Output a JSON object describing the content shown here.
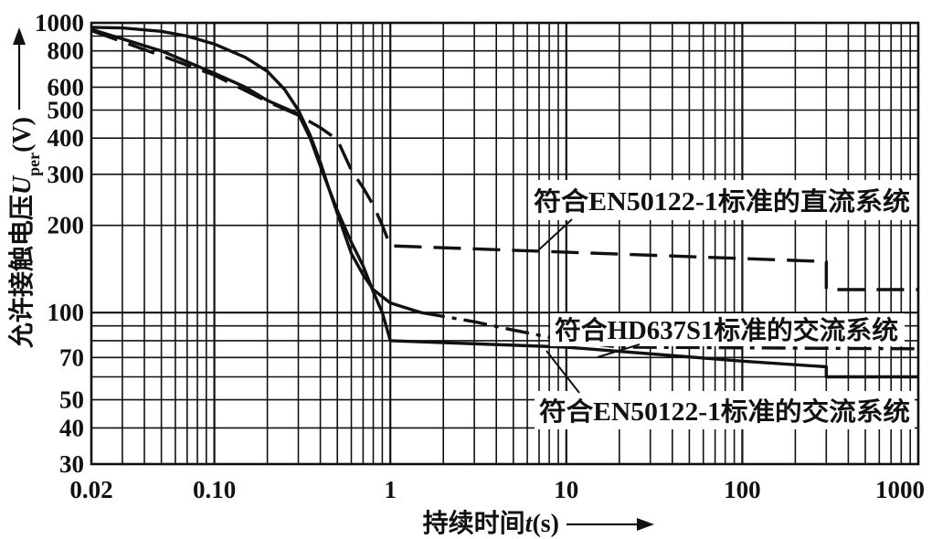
{
  "chart_data": {
    "type": "line",
    "xscale": "log",
    "yscale": "log",
    "xlim": [
      0.02,
      1000
    ],
    "ylim": [
      30,
      1000
    ],
    "grid": true,
    "xlabel": {
      "text": "持续时间",
      "var": "t",
      "unit": "(s)"
    },
    "ylabel": {
      "text": "允许接触电压",
      "var": "U",
      "sub": "per",
      "unit": "(V)"
    },
    "xticks": [
      {
        "value": 0.02,
        "label": "0.02"
      },
      {
        "value": 0.1,
        "label": "0.10"
      },
      {
        "value": 1,
        "label": "1"
      },
      {
        "value": 10,
        "label": "10"
      },
      {
        "value": 100,
        "label": "100"
      },
      {
        "value": 1000,
        "label": "1000"
      }
    ],
    "yticks": [
      {
        "value": 1000,
        "label": "1000"
      },
      {
        "value": 800,
        "label": "800"
      },
      {
        "value": 600,
        "label": "600"
      },
      {
        "value": 500,
        "label": "500"
      },
      {
        "value": 400,
        "label": "400"
      },
      {
        "value": 300,
        "label": "300"
      },
      {
        "value": 200,
        "label": "200"
      },
      {
        "value": 100,
        "label": "100"
      },
      {
        "value": 70,
        "label": "70"
      },
      {
        "value": 50,
        "label": "50"
      },
      {
        "value": 40,
        "label": "40"
      },
      {
        "value": 30,
        "label": "30"
      }
    ],
    "series": [
      {
        "name": "符合EN50122-1标准的直流系统",
        "line_style": "dashed",
        "points": [
          [
            0.02,
            940
          ],
          [
            0.05,
            770
          ],
          [
            0.1,
            660
          ],
          [
            0.2,
            535
          ],
          [
            0.3,
            480
          ],
          [
            0.4,
            435
          ],
          [
            0.5,
            395
          ],
          [
            0.6,
            310
          ],
          [
            0.7,
            270
          ],
          [
            0.8,
            235
          ],
          [
            0.9,
            200
          ],
          [
            1,
            170
          ],
          [
            300,
            150
          ],
          [
            300,
            120
          ],
          [
            1000,
            120
          ]
        ]
      },
      {
        "name": "符合HD637S1标准的交流系统",
        "line_style": "solid-dash-dot",
        "points": [
          [
            0.02,
            965
          ],
          [
            0.03,
            960
          ],
          [
            0.05,
            935
          ],
          [
            0.07,
            900
          ],
          [
            0.1,
            845
          ],
          [
            0.15,
            760
          ],
          [
            0.2,
            680
          ],
          [
            0.25,
            590
          ],
          [
            0.3,
            500
          ],
          [
            0.35,
            410
          ],
          [
            0.4,
            330
          ],
          [
            0.45,
            265
          ],
          [
            0.5,
            220
          ],
          [
            0.6,
            160
          ],
          [
            0.7,
            135
          ],
          [
            0.8,
            120
          ],
          [
            1,
            108
          ],
          [
            1.5,
            100
          ],
          [
            3,
            93
          ],
          [
            5,
            87
          ],
          [
            10,
            80
          ],
          [
            20,
            76
          ],
          [
            1000,
            75
          ]
        ]
      },
      {
        "name": "符合EN50122-1标准的交流系统",
        "line_style": "solid",
        "points": [
          [
            0.02,
            950
          ],
          [
            0.05,
            800
          ],
          [
            0.1,
            670
          ],
          [
            0.15,
            600
          ],
          [
            0.2,
            540
          ],
          [
            0.3,
            485
          ],
          [
            0.35,
            400
          ],
          [
            0.4,
            320
          ],
          [
            0.5,
            225
          ],
          [
            0.6,
            175
          ],
          [
            0.7,
            145
          ],
          [
            0.8,
            118
          ],
          [
            0.9,
            100
          ],
          [
            1,
            80
          ],
          [
            10,
            76
          ],
          [
            100,
            68
          ],
          [
            300,
            65
          ],
          [
            300,
            60
          ],
          [
            1000,
            60
          ]
        ]
      }
    ]
  }
}
